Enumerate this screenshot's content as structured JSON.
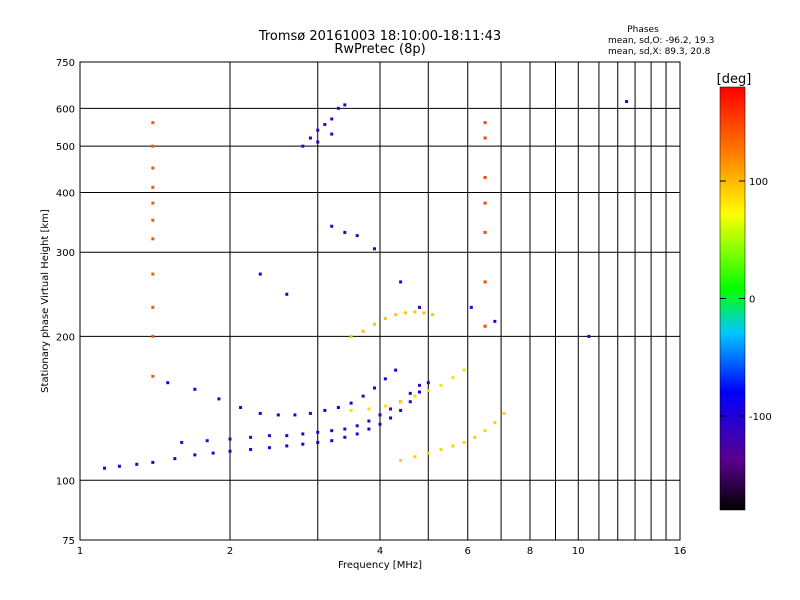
{
  "chart_data": {
    "type": "scatter",
    "title": "Tromsø 20161003 18:10:00-18:11:43",
    "subtitle": "RwPretec (8p)",
    "xlabel": "Frequency [MHz]",
    "ylabel": "Stationary phase Virtual Height [km]",
    "x_scale": "log",
    "y_scale": "log",
    "xlim": [
      1,
      16
    ],
    "ylim": [
      75,
      750
    ],
    "x_ticks": [
      1,
      2,
      4,
      6,
      8,
      10,
      16
    ],
    "x_minor_ticks": [
      3,
      5,
      7,
      9,
      11,
      12,
      13,
      14,
      15
    ],
    "y_ticks": [
      75,
      100,
      200,
      300,
      400,
      500,
      600,
      750
    ],
    "grid": true,
    "phases_box": {
      "title": "Phases",
      "line_o": "mean, sd,O:  -96.2, 19.3",
      "line_x": "mean, sd,X:  89.3, 20.8"
    },
    "colorbar": {
      "label": "[deg]",
      "range": [
        -180,
        180
      ],
      "ticks": [
        100,
        0,
        -100
      ]
    },
    "series": [
      {
        "trace": "low F region trace",
        "points": [
          [
            1.12,
            106
          ],
          [
            1.2,
            107
          ],
          [
            1.3,
            108
          ],
          [
            1.4,
            109
          ],
          [
            1.55,
            111
          ],
          [
            1.7,
            113
          ],
          [
            1.85,
            114
          ],
          [
            2.0,
            115
          ],
          [
            2.2,
            116
          ],
          [
            2.4,
            117
          ],
          [
            2.6,
            118
          ],
          [
            2.8,
            119
          ],
          [
            3.0,
            120
          ],
          [
            3.2,
            121
          ],
          [
            3.4,
            123
          ],
          [
            3.6,
            125
          ],
          [
            3.8,
            128
          ],
          [
            4.0,
            131
          ],
          [
            4.2,
            135
          ],
          [
            4.4,
            140
          ],
          [
            4.6,
            146
          ],
          [
            4.8,
            153
          ],
          [
            5.0,
            160
          ]
        ],
        "phase": -100
      },
      {
        "trace": "middle trace",
        "points": [
          [
            1.6,
            120
          ],
          [
            1.8,
            121
          ],
          [
            2.0,
            122
          ],
          [
            2.2,
            123
          ],
          [
            2.4,
            124
          ],
          [
            2.6,
            124
          ],
          [
            2.8,
            125
          ],
          [
            3.0,
            126
          ],
          [
            3.2,
            127
          ],
          [
            3.4,
            128
          ],
          [
            3.6,
            130
          ],
          [
            3.8,
            133
          ],
          [
            4.0,
            137
          ],
          [
            4.2,
            141
          ],
          [
            4.4,
            146
          ],
          [
            4.6,
            152
          ],
          [
            4.8,
            158
          ]
        ],
        "phase": -110
      },
      {
        "trace": "upper trace",
        "points": [
          [
            1.5,
            160
          ],
          [
            1.7,
            155
          ],
          [
            1.9,
            148
          ],
          [
            2.1,
            142
          ],
          [
            2.3,
            138
          ],
          [
            2.5,
            137
          ],
          [
            2.7,
            137
          ],
          [
            2.9,
            138
          ],
          [
            3.1,
            140
          ],
          [
            3.3,
            142
          ],
          [
            3.5,
            145
          ],
          [
            3.7,
            150
          ],
          [
            3.9,
            156
          ],
          [
            4.1,
            163
          ],
          [
            4.3,
            170
          ]
        ],
        "phase": -95
      },
      {
        "trace": "high band",
        "points": [
          [
            3.5,
            200
          ],
          [
            3.7,
            205
          ],
          [
            3.9,
            212
          ],
          [
            4.1,
            218
          ],
          [
            4.3,
            222
          ],
          [
            4.5,
            224
          ],
          [
            4.7,
            225
          ],
          [
            4.9,
            224
          ],
          [
            5.1,
            222
          ]
        ],
        "phase": 95
      },
      {
        "trace": "x-mode lower",
        "points": [
          [
            4.4,
            110
          ],
          [
            4.7,
            112
          ],
          [
            5.0,
            114
          ],
          [
            5.3,
            116
          ],
          [
            5.6,
            118
          ],
          [
            5.9,
            120
          ],
          [
            6.2,
            123
          ],
          [
            6.5,
            127
          ],
          [
            6.8,
            132
          ],
          [
            7.1,
            138
          ]
        ],
        "phase": 90
      },
      {
        "trace": "x-mode upper",
        "points": [
          [
            3.5,
            140
          ],
          [
            3.8,
            141
          ],
          [
            4.1,
            143
          ],
          [
            4.4,
            146
          ],
          [
            4.7,
            150
          ],
          [
            5.0,
            154
          ],
          [
            5.3,
            158
          ],
          [
            5.6,
            164
          ],
          [
            5.9,
            170
          ]
        ],
        "phase": 85
      },
      {
        "trace": "F2 echoes",
        "points": [
          [
            2.8,
            500
          ],
          [
            2.9,
            520
          ],
          [
            3.0,
            540
          ],
          [
            3.1,
            555
          ],
          [
            3.2,
            570
          ],
          [
            3.3,
            600
          ],
          [
            3.0,
            510
          ],
          [
            3.2,
            530
          ],
          [
            3.4,
            610
          ]
        ],
        "phase": -110
      },
      {
        "trace": "scattered echoes",
        "points": [
          [
            3.2,
            340
          ],
          [
            3.4,
            330
          ],
          [
            3.6,
            325
          ],
          [
            2.3,
            270
          ],
          [
            2.6,
            245
          ],
          [
            3.9,
            305
          ],
          [
            4.4,
            260
          ],
          [
            4.8,
            230
          ],
          [
            6.1,
            230
          ],
          [
            6.8,
            215
          ],
          [
            10.5,
            200
          ],
          [
            12.5,
            620
          ]
        ],
        "phase": -105
      },
      {
        "trace": "vertical streak 1.4 MHz",
        "points": [
          [
            1.4,
            560
          ],
          [
            1.4,
            500
          ],
          [
            1.4,
            450
          ],
          [
            1.4,
            410
          ],
          [
            1.4,
            380
          ],
          [
            1.4,
            350
          ],
          [
            1.4,
            320
          ],
          [
            1.4,
            270
          ],
          [
            1.4,
            230
          ],
          [
            1.4,
            200
          ],
          [
            1.4,
            165
          ]
        ],
        "phase": 140
      },
      {
        "trace": "vertical streak 6.5 MHz",
        "points": [
          [
            6.5,
            560
          ],
          [
            6.5,
            520
          ],
          [
            6.5,
            430
          ],
          [
            6.5,
            380
          ],
          [
            6.5,
            330
          ],
          [
            6.5,
            260
          ],
          [
            6.5,
            210
          ]
        ],
        "phase": 150
      }
    ]
  }
}
